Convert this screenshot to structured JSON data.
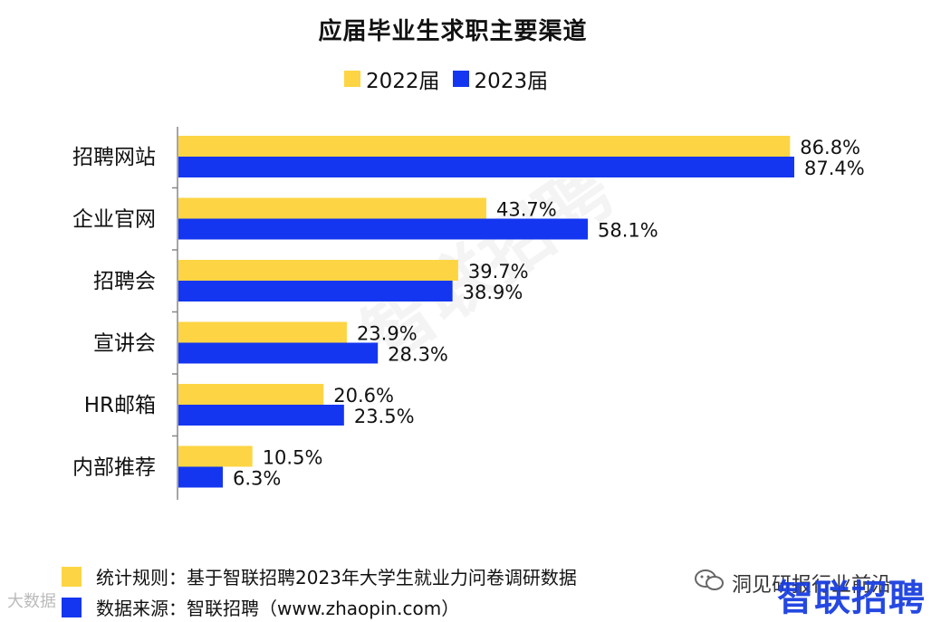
{
  "chart_data": {
    "type": "bar",
    "orientation": "horizontal",
    "title": "应届毕业生求职主要渠道",
    "categories": [
      "招聘网站",
      "企业官网",
      "招聘会",
      "宣讲会",
      "HR邮箱",
      "内部推荐"
    ],
    "series": [
      {
        "name": "2022届",
        "color": "#FDD544",
        "values": [
          86.8,
          43.7,
          39.7,
          23.9,
          20.6,
          10.5
        ],
        "labels": [
          "86.8%",
          "43.7%",
          "39.7%",
          "23.9%",
          "20.6%",
          "10.5%"
        ]
      },
      {
        "name": "2023届",
        "color": "#1436F0",
        "values": [
          87.4,
          58.1,
          38.9,
          28.3,
          23.5,
          6.3
        ],
        "labels": [
          "87.4%",
          "58.1%",
          "38.9%",
          "28.3%",
          "23.5%",
          "6.3%"
        ]
      }
    ],
    "xlim": [
      0,
      100
    ],
    "legend_position": "top",
    "grid": false
  },
  "watermark": "智联招聘",
  "footer": {
    "rule_label": "统计规则：基于智联招聘2023年大学生就业力问卷调研数据",
    "source_label": "数据来源：智联招聘（www.zhaopin.com）"
  },
  "branding": {
    "wechat_text": "洞见研报行业前沿",
    "brand_text": "智联招聘",
    "corner_text": "大数据"
  }
}
